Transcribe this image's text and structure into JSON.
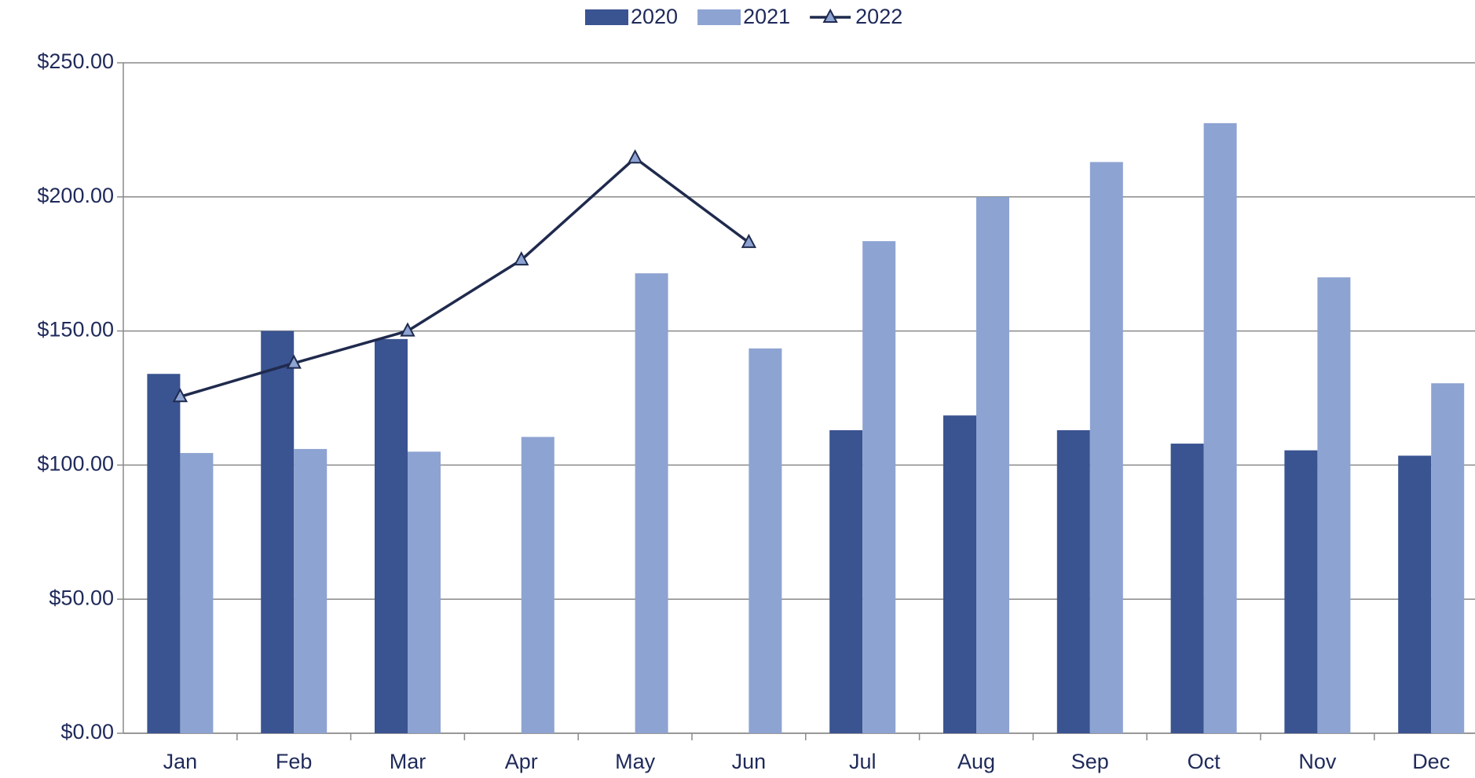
{
  "chart_data": {
    "type": "bar",
    "categories": [
      "Jan",
      "Feb",
      "Mar",
      "Apr",
      "May",
      "Jun",
      "Jul",
      "Aug",
      "Sep",
      "Oct",
      "Nov",
      "Dec"
    ],
    "series": [
      {
        "name": "2020",
        "color": "#3a5391",
        "values": [
          134,
          150,
          147,
          null,
          null,
          null,
          113,
          118.5,
          113,
          108,
          105.5,
          103.5
        ]
      },
      {
        "name": "2021",
        "color": "#8da3d2",
        "values": [
          104.5,
          106,
          105,
          110.5,
          171.5,
          143.5,
          183.5,
          200,
          213,
          227.5,
          170,
          130.5
        ]
      },
      {
        "name": "2022",
        "color": "#1f2a4d",
        "type": "line",
        "values": [
          125.5,
          138,
          150,
          176.5,
          214.5,
          183,
          null,
          null,
          null,
          null,
          null,
          null
        ]
      }
    ],
    "ylim": [
      0,
      250
    ],
    "yticks": [
      {
        "value": 0,
        "label": "$0.00"
      },
      {
        "value": 50,
        "label": "$50.00"
      },
      {
        "value": 100,
        "label": "$100.00"
      },
      {
        "value": 150,
        "label": "$150.00"
      },
      {
        "value": 200,
        "label": "$200.00"
      },
      {
        "value": 250,
        "label": "$250.00"
      }
    ],
    "grid": true,
    "legend": "top"
  }
}
